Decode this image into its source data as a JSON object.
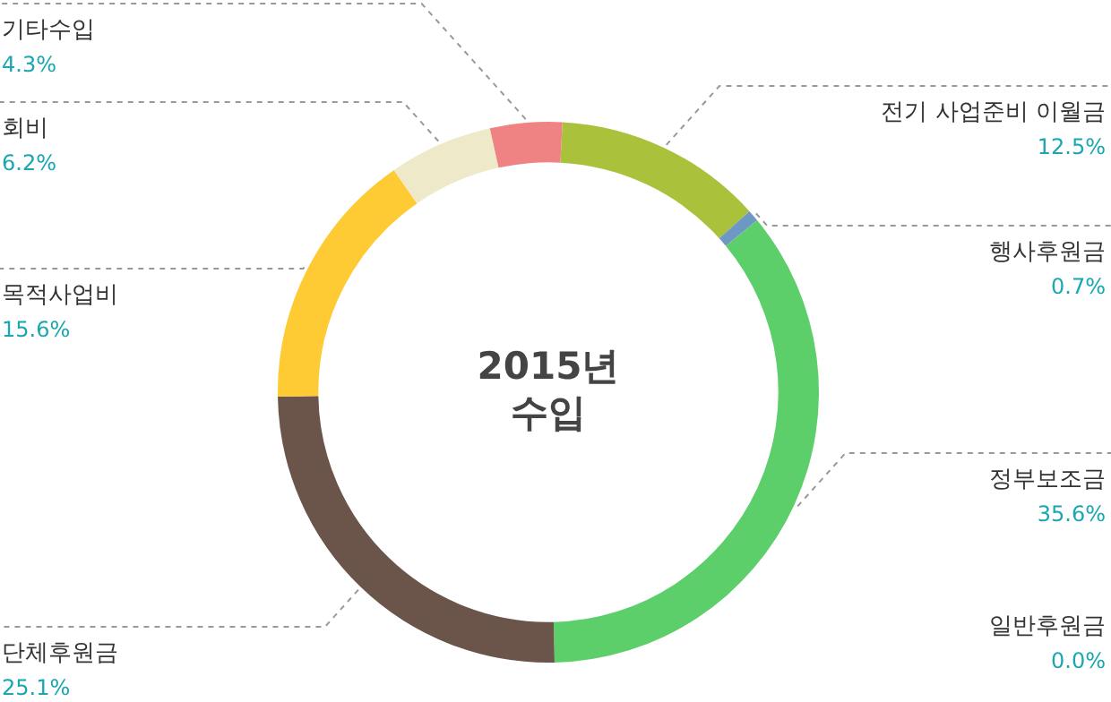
{
  "chart_data": {
    "type": "donut",
    "title": "2015년 수입",
    "categories": [
      "전기 사업준비 이월금",
      "행사후원금",
      "정부보조금",
      "일반후원금",
      "단체후원금",
      "목적사업비",
      "회비",
      "기타수입"
    ],
    "values": [
      12.5,
      0.7,
      35.6,
      0.0,
      25.1,
      15.6,
      6.2,
      4.3
    ],
    "colors": [
      "#a9c13b",
      "#6e98c4",
      "#5ccf6a",
      "#3aa0c0",
      "#6b5449",
      "#fecb35",
      "#ede9c9",
      "#ef8383"
    ],
    "value_labels": [
      "12.5%",
      "0.7%",
      "35.6%",
      "0.0%",
      "25.1%",
      "15.6%",
      "6.2%",
      "4.3%"
    ],
    "legend": false
  }
}
